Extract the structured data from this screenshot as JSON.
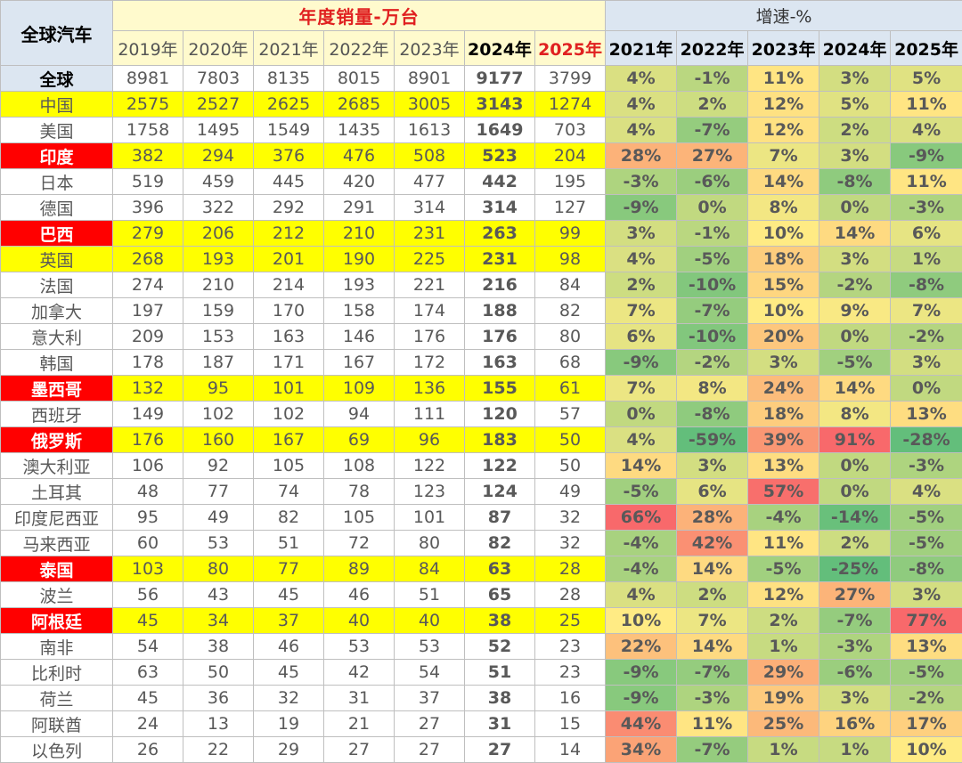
{
  "table": {
    "corner_label": "全球汽车",
    "sales_title": "年度销量-万台",
    "growth_title": "增速-%",
    "sales_years": [
      "2019年",
      "2020年",
      "2021年",
      "2022年",
      "2023年",
      "2024年",
      "2025年"
    ],
    "growth_years": [
      "2021年",
      "2022年",
      "2023年",
      "2024年",
      "2025年"
    ],
    "rows": [
      {
        "name": "全球",
        "hl": "global",
        "sales": [
          "8981",
          "7803",
          "8135",
          "8015",
          "8901",
          "9177",
          "3799"
        ],
        "growth": [
          "4%",
          "-1%",
          "11%",
          "3%",
          "5%"
        ]
      },
      {
        "name": "中国",
        "hl": "yellow",
        "sales": [
          "2575",
          "2527",
          "2625",
          "2685",
          "3005",
          "3143",
          "1274"
        ],
        "growth": [
          "4%",
          "2%",
          "12%",
          "5%",
          "11%"
        ]
      },
      {
        "name": "美国",
        "hl": "",
        "sales": [
          "1758",
          "1495",
          "1549",
          "1435",
          "1613",
          "1649",
          "703"
        ],
        "growth": [
          "4%",
          "-7%",
          "12%",
          "2%",
          "4%"
        ]
      },
      {
        "name": "印度",
        "hl": "red",
        "sales": [
          "382",
          "294",
          "376",
          "476",
          "508",
          "523",
          "204"
        ],
        "growth": [
          "28%",
          "27%",
          "7%",
          "3%",
          "-9%"
        ]
      },
      {
        "name": "日本",
        "hl": "",
        "sales": [
          "519",
          "459",
          "445",
          "420",
          "477",
          "442",
          "195"
        ],
        "growth": [
          "-3%",
          "-6%",
          "14%",
          "-8%",
          "11%"
        ]
      },
      {
        "name": "德国",
        "hl": "",
        "sales": [
          "396",
          "322",
          "292",
          "291",
          "314",
          "314",
          "127"
        ],
        "growth": [
          "-9%",
          "0%",
          "8%",
          "0%",
          "-3%"
        ]
      },
      {
        "name": "巴西",
        "hl": "red",
        "sales": [
          "279",
          "206",
          "212",
          "210",
          "231",
          "263",
          "99"
        ],
        "growth": [
          "3%",
          "-1%",
          "10%",
          "14%",
          "6%"
        ]
      },
      {
        "name": "英国",
        "hl": "yellow",
        "sales": [
          "268",
          "193",
          "201",
          "190",
          "225",
          "231",
          "98"
        ],
        "growth": [
          "4%",
          "-5%",
          "18%",
          "3%",
          "1%"
        ]
      },
      {
        "name": "法国",
        "hl": "",
        "sales": [
          "274",
          "210",
          "214",
          "193",
          "221",
          "216",
          "84"
        ],
        "growth": [
          "2%",
          "-10%",
          "15%",
          "-2%",
          "-8%"
        ]
      },
      {
        "name": "加拿大",
        "hl": "",
        "sales": [
          "197",
          "159",
          "170",
          "158",
          "174",
          "188",
          "82"
        ],
        "growth": [
          "7%",
          "-7%",
          "10%",
          "9%",
          "7%"
        ]
      },
      {
        "name": "意大利",
        "hl": "",
        "sales": [
          "209",
          "153",
          "163",
          "146",
          "176",
          "176",
          "80"
        ],
        "growth": [
          "6%",
          "-10%",
          "20%",
          "0%",
          "-2%"
        ]
      },
      {
        "name": "韩国",
        "hl": "",
        "sales": [
          "178",
          "187",
          "171",
          "167",
          "172",
          "163",
          "68"
        ],
        "growth": [
          "-9%",
          "-2%",
          "3%",
          "-5%",
          "3%"
        ]
      },
      {
        "name": "墨西哥",
        "hl": "red",
        "sales": [
          "132",
          "95",
          "101",
          "109",
          "136",
          "155",
          "61"
        ],
        "growth": [
          "7%",
          "8%",
          "24%",
          "14%",
          "0%"
        ]
      },
      {
        "name": "西班牙",
        "hl": "",
        "sales": [
          "149",
          "102",
          "102",
          "94",
          "111",
          "120",
          "57"
        ],
        "growth": [
          "0%",
          "-8%",
          "18%",
          "8%",
          "13%"
        ]
      },
      {
        "name": "俄罗斯",
        "hl": "red",
        "sales": [
          "176",
          "160",
          "167",
          "69",
          "96",
          "183",
          "50"
        ],
        "growth": [
          "4%",
          "-59%",
          "39%",
          "91%",
          "-28%"
        ]
      },
      {
        "name": "澳大利亚",
        "hl": "",
        "sales": [
          "106",
          "92",
          "105",
          "108",
          "122",
          "122",
          "50"
        ],
        "growth": [
          "14%",
          "3%",
          "13%",
          "0%",
          "-3%"
        ]
      },
      {
        "name": "土耳其",
        "hl": "",
        "sales": [
          "48",
          "77",
          "74",
          "78",
          "123",
          "124",
          "49"
        ],
        "growth": [
          "-5%",
          "6%",
          "57%",
          "0%",
          "4%"
        ]
      },
      {
        "name": "印度尼西亚",
        "hl": "",
        "sales": [
          "95",
          "49",
          "82",
          "105",
          "101",
          "87",
          "32"
        ],
        "growth": [
          "66%",
          "28%",
          "-4%",
          "-14%",
          "-5%"
        ]
      },
      {
        "name": "马来西亚",
        "hl": "",
        "sales": [
          "60",
          "53",
          "51",
          "72",
          "80",
          "82",
          "32"
        ],
        "growth": [
          "-4%",
          "42%",
          "11%",
          "2%",
          "-5%"
        ]
      },
      {
        "name": "泰国",
        "hl": "red",
        "sales": [
          "103",
          "80",
          "77",
          "89",
          "84",
          "63",
          "28"
        ],
        "growth": [
          "-4%",
          "14%",
          "-5%",
          "-25%",
          "-8%"
        ]
      },
      {
        "name": "波兰",
        "hl": "",
        "sales": [
          "56",
          "43",
          "45",
          "46",
          "51",
          "65",
          "28"
        ],
        "growth": [
          "4%",
          "2%",
          "12%",
          "27%",
          "3%"
        ]
      },
      {
        "name": "阿根廷",
        "hl": "red",
        "sales": [
          "45",
          "34",
          "37",
          "40",
          "40",
          "38",
          "25"
        ],
        "growth": [
          "10%",
          "7%",
          "2%",
          "-7%",
          "77%"
        ]
      },
      {
        "name": "南非",
        "hl": "",
        "sales": [
          "54",
          "38",
          "46",
          "53",
          "53",
          "52",
          "23"
        ],
        "growth": [
          "22%",
          "14%",
          "1%",
          "-3%",
          "13%"
        ]
      },
      {
        "name": "比利时",
        "hl": "",
        "sales": [
          "63",
          "50",
          "45",
          "42",
          "54",
          "51",
          "23"
        ],
        "growth": [
          "-9%",
          "-7%",
          "29%",
          "-6%",
          "-5%"
        ]
      },
      {
        "name": "荷兰",
        "hl": "",
        "sales": [
          "45",
          "36",
          "32",
          "31",
          "37",
          "38",
          "16"
        ],
        "growth": [
          "-9%",
          "-3%",
          "19%",
          "3%",
          "-2%"
        ]
      },
      {
        "name": "阿联酋",
        "hl": "",
        "sales": [
          "24",
          "13",
          "19",
          "21",
          "27",
          "31",
          "15"
        ],
        "growth": [
          "44%",
          "11%",
          "25%",
          "16%",
          "17%"
        ]
      },
      {
        "name": "以色列",
        "hl": "",
        "sales": [
          "26",
          "22",
          "29",
          "27",
          "27",
          "27",
          "14"
        ],
        "growth": [
          "34%",
          "-7%",
          "1%",
          "1%",
          "10%"
        ]
      }
    ]
  }
}
